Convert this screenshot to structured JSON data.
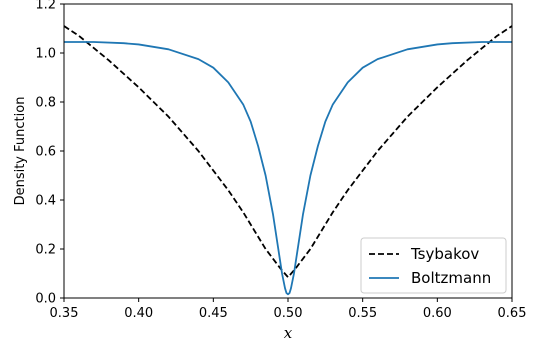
{
  "chart_data": {
    "type": "line",
    "title": "",
    "xlabel": "x",
    "ylabel": "Density Function",
    "xlim": [
      0.35,
      0.65
    ],
    "ylim": [
      0.0,
      1.2
    ],
    "xticks": [
      "0.35",
      "0.40",
      "0.45",
      "0.50",
      "0.55",
      "0.60",
      "0.65"
    ],
    "yticks": [
      "0.0",
      "0.2",
      "0.4",
      "0.6",
      "0.8",
      "1.0",
      "1.2"
    ],
    "grid": false,
    "legend_position": "lower-right",
    "series": [
      {
        "name": "Tsybakov",
        "color": "#000000",
        "style": "dashed",
        "x": [
          0.35,
          0.36,
          0.37,
          0.38,
          0.39,
          0.4,
          0.41,
          0.42,
          0.43,
          0.44,
          0.45,
          0.46,
          0.47,
          0.48,
          0.485,
          0.49,
          0.495,
          0.5,
          0.505,
          0.51,
          0.515,
          0.52,
          0.53,
          0.54,
          0.55,
          0.56,
          0.57,
          0.58,
          0.59,
          0.6,
          0.61,
          0.62,
          0.63,
          0.64,
          0.65
        ],
        "y": [
          1.11,
          1.07,
          1.02,
          0.97,
          0.915,
          0.86,
          0.8,
          0.74,
          0.67,
          0.6,
          0.52,
          0.44,
          0.35,
          0.25,
          0.2,
          0.16,
          0.12,
          0.085,
          0.12,
          0.16,
          0.2,
          0.25,
          0.35,
          0.44,
          0.52,
          0.6,
          0.67,
          0.74,
          0.8,
          0.86,
          0.915,
          0.97,
          1.02,
          1.07,
          1.11
        ]
      },
      {
        "name": "Boltzmann",
        "color": "#1f77b4",
        "style": "solid",
        "x": [
          0.35,
          0.37,
          0.39,
          0.4,
          0.42,
          0.44,
          0.45,
          0.46,
          0.47,
          0.475,
          0.48,
          0.485,
          0.49,
          0.493,
          0.496,
          0.498,
          0.499,
          0.5,
          0.501,
          0.502,
          0.504,
          0.507,
          0.51,
          0.515,
          0.52,
          0.525,
          0.53,
          0.54,
          0.55,
          0.56,
          0.58,
          0.6,
          0.61,
          0.63,
          0.65
        ],
        "y": [
          1.045,
          1.045,
          1.04,
          1.035,
          1.015,
          0.975,
          0.94,
          0.88,
          0.79,
          0.72,
          0.62,
          0.5,
          0.34,
          0.22,
          0.1,
          0.04,
          0.02,
          0.015,
          0.02,
          0.04,
          0.1,
          0.22,
          0.34,
          0.5,
          0.62,
          0.72,
          0.79,
          0.88,
          0.94,
          0.975,
          1.015,
          1.035,
          1.04,
          1.045,
          1.045
        ]
      }
    ]
  }
}
